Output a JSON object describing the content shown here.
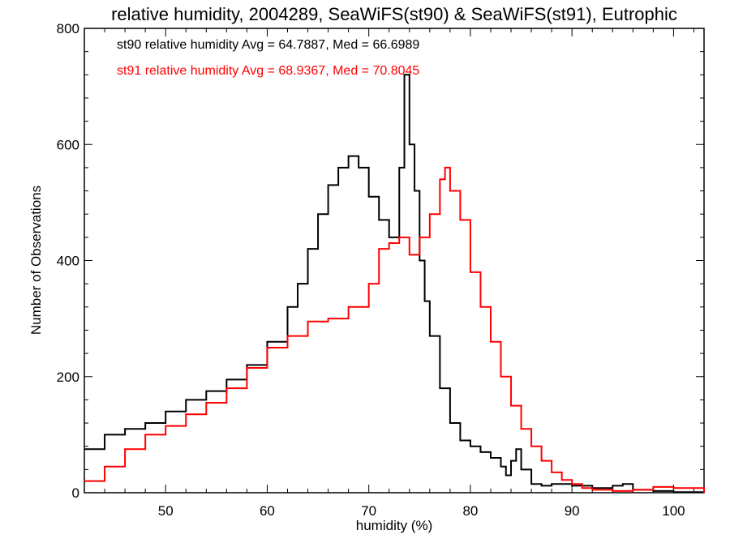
{
  "chart_data": {
    "type": "line",
    "style": "histogram-step",
    "title": "relative humidity, 2004289, SeaWiFS(st90) & SeaWiFS(st91), Eutrophic",
    "xlabel": "humidity (%)",
    "ylabel": "Number of Observations",
    "xlim": [
      42,
      103
    ],
    "ylim": [
      0,
      800
    ],
    "x_ticks": [
      50,
      60,
      70,
      80,
      90,
      100
    ],
    "y_ticks": [
      0,
      200,
      400,
      600,
      800
    ],
    "x_tick_labels": [
      "50",
      "60",
      "70",
      "80",
      "90",
      "100"
    ],
    "y_tick_labels": [
      "0",
      "200",
      "400",
      "600",
      "800"
    ],
    "grid": false,
    "legend_position": "top-left",
    "series": [
      {
        "name": "st90",
        "label": "st90 relative humidity Avg = 64.7887, Med = 66.6989",
        "color": "#000000",
        "x": [
          42,
          44,
          46,
          48,
          50,
          52,
          54,
          56,
          58,
          60,
          62,
          63,
          64,
          65,
          66,
          67,
          68,
          69,
          70,
          71,
          72,
          73,
          73.5,
          74,
          74.5,
          75,
          75.5,
          76,
          77,
          78,
          79,
          80,
          81,
          82,
          83,
          83.5,
          84,
          84.5,
          85,
          86,
          87,
          88,
          90,
          92,
          94,
          95,
          96,
          98,
          100,
          103
        ],
        "values": [
          75,
          100,
          110,
          120,
          140,
          160,
          175,
          195,
          220,
          260,
          320,
          360,
          420,
          480,
          530,
          560,
          580,
          560,
          510,
          470,
          440,
          560,
          720,
          600,
          520,
          400,
          330,
          270,
          180,
          120,
          90,
          80,
          70,
          60,
          45,
          30,
          55,
          75,
          40,
          15,
          12,
          15,
          12,
          8,
          12,
          15,
          5,
          3,
          1,
          0
        ]
      },
      {
        "name": "st91",
        "label": "st91 relative humidity Avg = 68.9367, Med = 70.8045",
        "color": "#ff0000",
        "x": [
          42,
          44,
          46,
          48,
          50,
          52,
          54,
          56,
          58,
          60,
          62,
          64,
          66,
          68,
          70,
          71,
          72,
          73,
          74,
          75,
          76,
          77,
          77.5,
          78,
          79,
          80,
          81,
          82,
          83,
          84,
          85,
          86,
          87,
          88,
          89,
          90,
          91,
          92,
          94,
          96,
          98,
          100,
          103
        ],
        "values": [
          20,
          45,
          75,
          100,
          115,
          135,
          155,
          180,
          215,
          250,
          270,
          295,
          300,
          320,
          360,
          420,
          430,
          440,
          410,
          440,
          480,
          540,
          560,
          520,
          470,
          380,
          320,
          260,
          200,
          150,
          110,
          80,
          55,
          35,
          22,
          15,
          8,
          5,
          3,
          5,
          10,
          8,
          0
        ]
      }
    ]
  }
}
